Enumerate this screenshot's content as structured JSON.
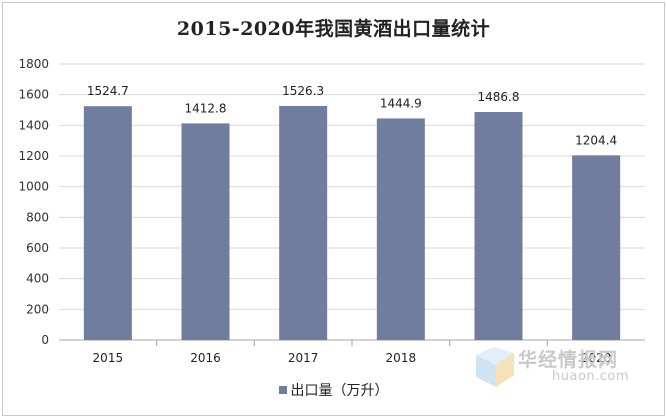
{
  "chart_data": {
    "type": "bar",
    "title": "2015-2020年我国黄酒出口量统计",
    "categories": [
      "2015",
      "2016",
      "2017",
      "2018",
      "2019",
      "2020"
    ],
    "series": [
      {
        "name": "出口量（万升）",
        "values": [
          1524.7,
          1412.8,
          1526.3,
          1444.9,
          1486.8,
          1204.4
        ],
        "labels": [
          "1524.7",
          "1412.8",
          "1526.3",
          "1444.9",
          "1486.8",
          "1204.4"
        ]
      }
    ],
    "yticks": [
      "0",
      "200",
      "400",
      "600",
      "800",
      "1000",
      "1200",
      "1400",
      "1600",
      "1800"
    ],
    "ylim": [
      0,
      1800
    ],
    "grid": true,
    "legend_position": "bottom",
    "bar_color": "#717d9f"
  },
  "watermark": {
    "cn": "华经情报网",
    "en": "huaon.com"
  }
}
